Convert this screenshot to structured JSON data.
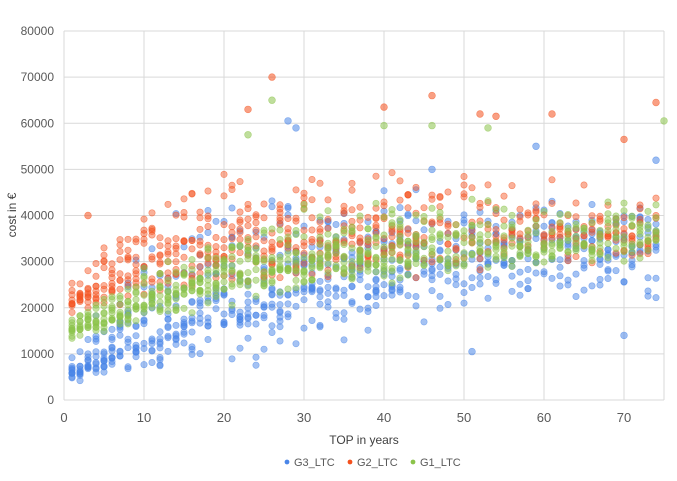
{
  "chart_data": {
    "type": "scatter",
    "title": "",
    "xlabel": "TOP in years",
    "ylabel": "cost in €",
    "xlim": [
      0,
      75
    ],
    "ylim": [
      0,
      80000
    ],
    "xticks": [
      0,
      10,
      20,
      30,
      40,
      50,
      60,
      70
    ],
    "yticks": [
      0,
      10000,
      20000,
      30000,
      40000,
      50000,
      60000,
      70000,
      80000
    ],
    "grid": true,
    "legend_position": "bottom",
    "series": [
      {
        "name": "G3_LTC",
        "color": "#4a86e8",
        "trend": [
          [
            1,
            5500
          ],
          [
            5,
            9000
          ],
          [
            10,
            13500
          ],
          [
            15,
            17500
          ],
          [
            20,
            21000
          ],
          [
            30,
            25500
          ],
          [
            40,
            28500
          ],
          [
            50,
            30500
          ],
          [
            60,
            32000
          ],
          [
            75,
            33500
          ]
        ],
        "spread_low": [
          [
            1,
            2500
          ],
          [
            5,
            4000
          ],
          [
            10,
            5000
          ],
          [
            20,
            5500
          ],
          [
            30,
            8500
          ],
          [
            40,
            13000
          ],
          [
            50,
            17000
          ],
          [
            60,
            20000
          ],
          [
            75,
            20000
          ]
        ],
        "spread_high": [
          [
            1,
            12000
          ],
          [
            5,
            25000
          ],
          [
            10,
            40000
          ],
          [
            20,
            48000
          ],
          [
            30,
            50000
          ],
          [
            40,
            50000
          ],
          [
            50,
            48000
          ],
          [
            60,
            47000
          ],
          [
            75,
            45000
          ]
        ],
        "outliers": [
          [
            28,
            60500
          ],
          [
            29,
            59000
          ],
          [
            51,
            10500
          ],
          [
            70,
            14000
          ],
          [
            74,
            52000
          ],
          [
            59,
            55000
          ],
          [
            46,
            50000
          ]
        ]
      },
      {
        "name": "G2_LTC",
        "color": "#f4511e",
        "trend": [
          [
            1,
            21000
          ],
          [
            5,
            25000
          ],
          [
            10,
            29000
          ],
          [
            15,
            31500
          ],
          [
            20,
            33000
          ],
          [
            30,
            34500
          ],
          [
            40,
            35500
          ],
          [
            50,
            36000
          ],
          [
            60,
            36500
          ],
          [
            75,
            36500
          ]
        ],
        "spread_low": [
          [
            1,
            17000
          ],
          [
            5,
            17000
          ],
          [
            10,
            17000
          ],
          [
            20,
            18000
          ],
          [
            30,
            22000
          ],
          [
            40,
            24000
          ],
          [
            50,
            26000
          ],
          [
            60,
            27000
          ],
          [
            75,
            29000
          ]
        ],
        "spread_high": [
          [
            1,
            26000
          ],
          [
            5,
            38000
          ],
          [
            10,
            45000
          ],
          [
            20,
            52000
          ],
          [
            30,
            54000
          ],
          [
            40,
            55000
          ],
          [
            50,
            53000
          ],
          [
            60,
            50000
          ],
          [
            75,
            47000
          ]
        ],
        "outliers": [
          [
            26,
            70000
          ],
          [
            23,
            63000
          ],
          [
            40,
            63500
          ],
          [
            46,
            66000
          ],
          [
            52,
            62000
          ],
          [
            54,
            61500
          ],
          [
            61,
            62000
          ],
          [
            74,
            64500
          ],
          [
            70,
            56500
          ],
          [
            3,
            40000
          ]
        ]
      },
      {
        "name": "G1_LTC",
        "color": "#8bc34a",
        "trend": [
          [
            1,
            15500
          ],
          [
            5,
            17500
          ],
          [
            10,
            21500
          ],
          [
            15,
            24500
          ],
          [
            20,
            27000
          ],
          [
            30,
            29500
          ],
          [
            40,
            31500
          ],
          [
            50,
            33000
          ],
          [
            60,
            34000
          ],
          [
            75,
            35000
          ]
        ],
        "spread_low": [
          [
            1,
            13000
          ],
          [
            5,
            14000
          ],
          [
            10,
            16000
          ],
          [
            20,
            19000
          ],
          [
            30,
            22000
          ],
          [
            40,
            24000
          ],
          [
            50,
            26000
          ],
          [
            60,
            27500
          ],
          [
            75,
            29000
          ]
        ],
        "spread_high": [
          [
            1,
            18000
          ],
          [
            5,
            24000
          ],
          [
            10,
            30000
          ],
          [
            20,
            40000
          ],
          [
            30,
            45000
          ],
          [
            40,
            47000
          ],
          [
            50,
            47000
          ],
          [
            60,
            46000
          ],
          [
            75,
            44000
          ]
        ],
        "outliers": [
          [
            26,
            65000
          ],
          [
            23,
            57500
          ],
          [
            40,
            59500
          ],
          [
            46,
            59500
          ],
          [
            75,
            60500
          ],
          [
            53,
            59000
          ]
        ]
      }
    ]
  }
}
